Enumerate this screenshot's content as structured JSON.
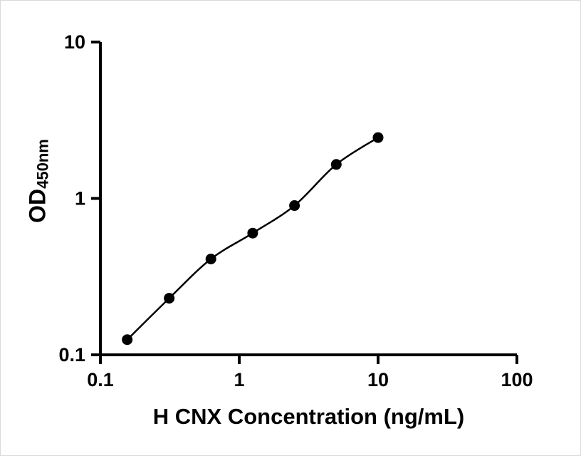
{
  "chart_data": {
    "type": "scatter",
    "title": "",
    "xlabel": "H CNX Concentration (ng/mL)",
    "ylabel_main": "OD",
    "ylabel_sub": "450nm",
    "xscale": "log",
    "yscale": "log",
    "xlim": [
      0.1,
      100
    ],
    "ylim": [
      0.1,
      10
    ],
    "x_tick_values": [
      0.1,
      1,
      10,
      100
    ],
    "x_tick_labels": [
      "0.1",
      "1",
      "10",
      "100"
    ],
    "y_tick_values": [
      0.1,
      1,
      10
    ],
    "y_tick_labels": [
      "0.1",
      "1",
      "10"
    ],
    "x": [
      0.156,
      0.313,
      0.625,
      1.25,
      2.5,
      5,
      10
    ],
    "y": [
      0.125,
      0.23,
      0.41,
      0.6,
      0.9,
      1.65,
      2.45
    ],
    "has_fit_line": true,
    "grid": false,
    "legend": "none",
    "marker_color": "#000000",
    "line_color": "#000000",
    "axis_color": "#000000",
    "background_color": "#ffffff"
  }
}
